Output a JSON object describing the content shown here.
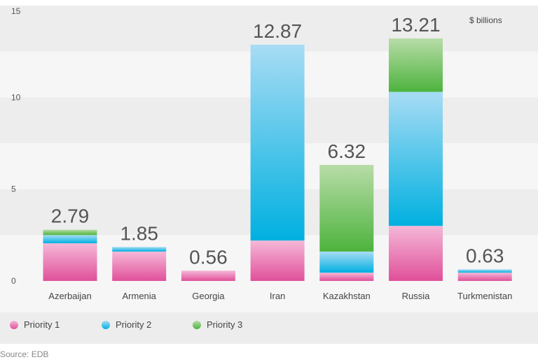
{
  "chart_data": {
    "type": "bar",
    "stacked": true,
    "categories": [
      "Azerbaijan",
      "Armenia",
      "Georgia",
      "Iran",
      "Kazakhstan",
      "Russia",
      "Turkmenistan"
    ],
    "series": [
      {
        "name": "Priority 1",
        "values": [
          2.05,
          1.6,
          0.56,
          2.2,
          0.45,
          3.0,
          0.45
        ],
        "color": "#e0509a",
        "color_light": "#f5b8d8"
      },
      {
        "name": "Priority 2",
        "values": [
          0.45,
          0.25,
          0.0,
          10.67,
          1.15,
          7.3,
          0.18
        ],
        "color": "#00b0e0",
        "color_light": "#a8dcf4"
      },
      {
        "name": "Priority 3",
        "values": [
          0.29,
          0.0,
          0.0,
          0.0,
          4.72,
          2.91,
          0.0
        ],
        "color": "#4db33d",
        "color_light": "#b8dca8"
      }
    ],
    "totals": [
      "2.79",
      "1.85",
      "0.56",
      "12.87",
      "6.32",
      "13.21",
      "0.63"
    ],
    "unit_label": "$ billions",
    "yticks": [
      0,
      5,
      10,
      15
    ],
    "ylim": [
      0,
      15
    ],
    "legend_position": "bottom-left",
    "grid": "alternating-bands"
  },
  "source": {
    "prefix": "Source:",
    "text": "EDB"
  }
}
